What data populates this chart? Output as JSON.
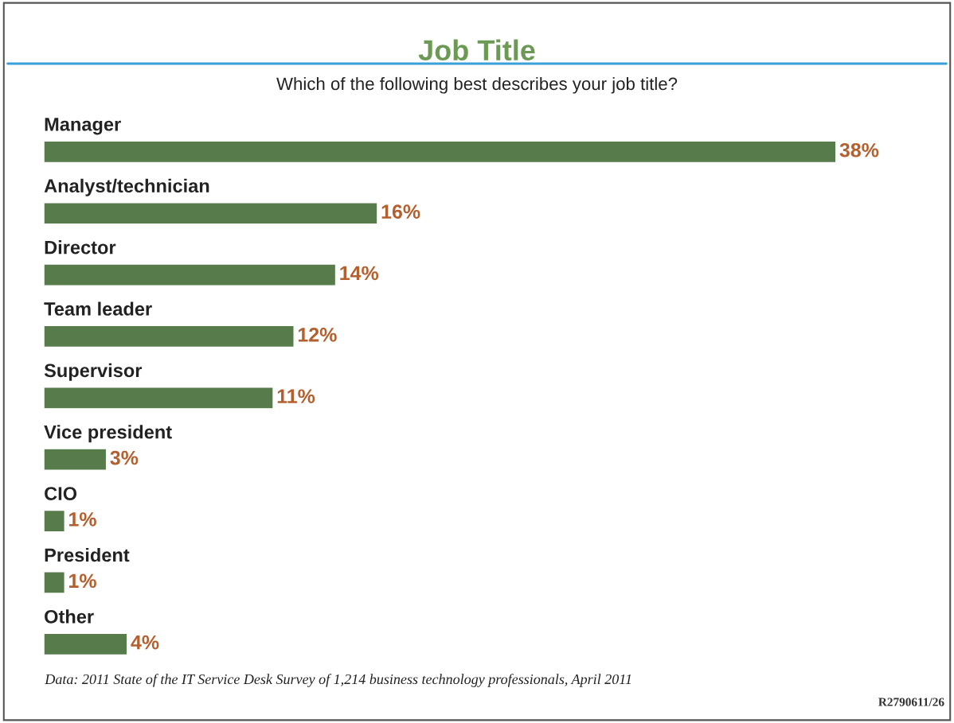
{
  "chart_data": {
    "type": "bar",
    "orientation": "horizontal",
    "title": "Job Title",
    "subtitle": "Which of the following best describes your job title?",
    "categories": [
      "Manager",
      "Analyst/technician",
      "Director",
      "Team leader",
      "Supervisor",
      "Vice president",
      "CIO",
      "President",
      "Other"
    ],
    "values": [
      38,
      16,
      14,
      12,
      11,
      3,
      1,
      1,
      4
    ],
    "value_labels": [
      "38%",
      "16%",
      "14%",
      "12%",
      "11%",
      "3%",
      "1%",
      "1%",
      "4%"
    ],
    "color": "#587b4c",
    "annotations": [
      "Data: 2011 State of the IT Service Desk Survey of 1,214 business technology professionals, April 2011",
      "R2790611/26"
    ]
  }
}
